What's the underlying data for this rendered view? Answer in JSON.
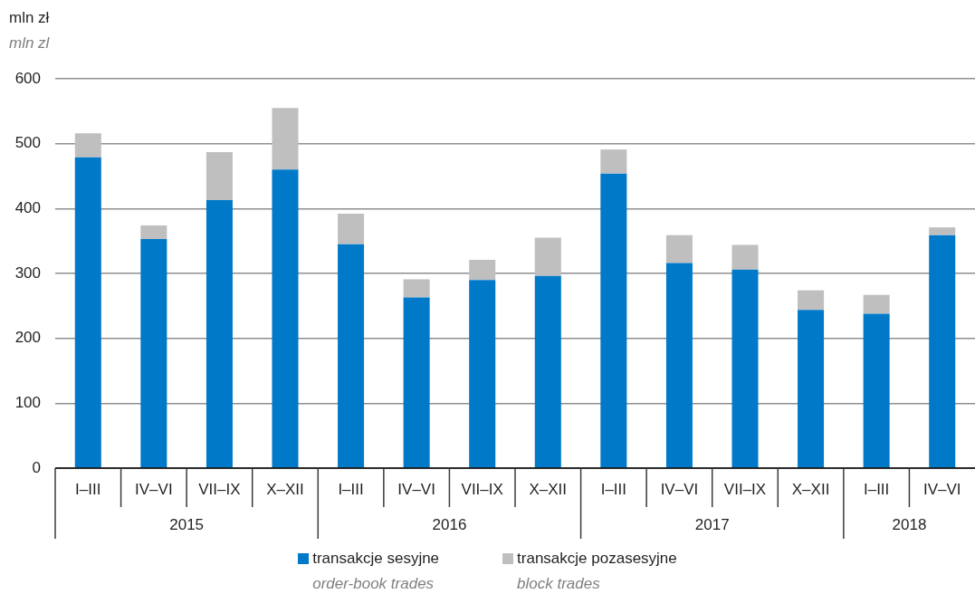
{
  "chart_data": {
    "type": "bar",
    "ylabel": "mln zł\nmln zl",
    "categories": [
      "I–III",
      "IV–VI",
      "VII–IX",
      "X–XII",
      "I–III",
      "IV–VI",
      "VII–IX",
      "X–XII",
      "I–III",
      "IV–VI",
      "VII–IX",
      "X–XII",
      "I–III",
      "IV–VI"
    ],
    "annotations": [
      "2015",
      "2016",
      "2017",
      "2018"
    ],
    "series": [
      {
        "name": "transakcje sesyjne\norder-book trades",
        "color": "#0079c8",
        "values": [
          479,
          353,
          413,
          460,
          345,
          263,
          290,
          296,
          454,
          316,
          306,
          244,
          238,
          359
        ]
      },
      {
        "name": "transakcje pozasesyjne\nblock trades",
        "color": "#bfbfbf",
        "values": [
          37,
          21,
          74,
          95,
          47,
          28,
          31,
          59,
          37,
          43,
          38,
          30,
          29,
          12
        ]
      }
    ],
    "stacked": true,
    "ylim": [
      0,
      600
    ],
    "yticks": [
      0,
      100,
      200,
      300,
      400,
      500,
      600
    ],
    "grid": "y",
    "legend": "bottom"
  }
}
